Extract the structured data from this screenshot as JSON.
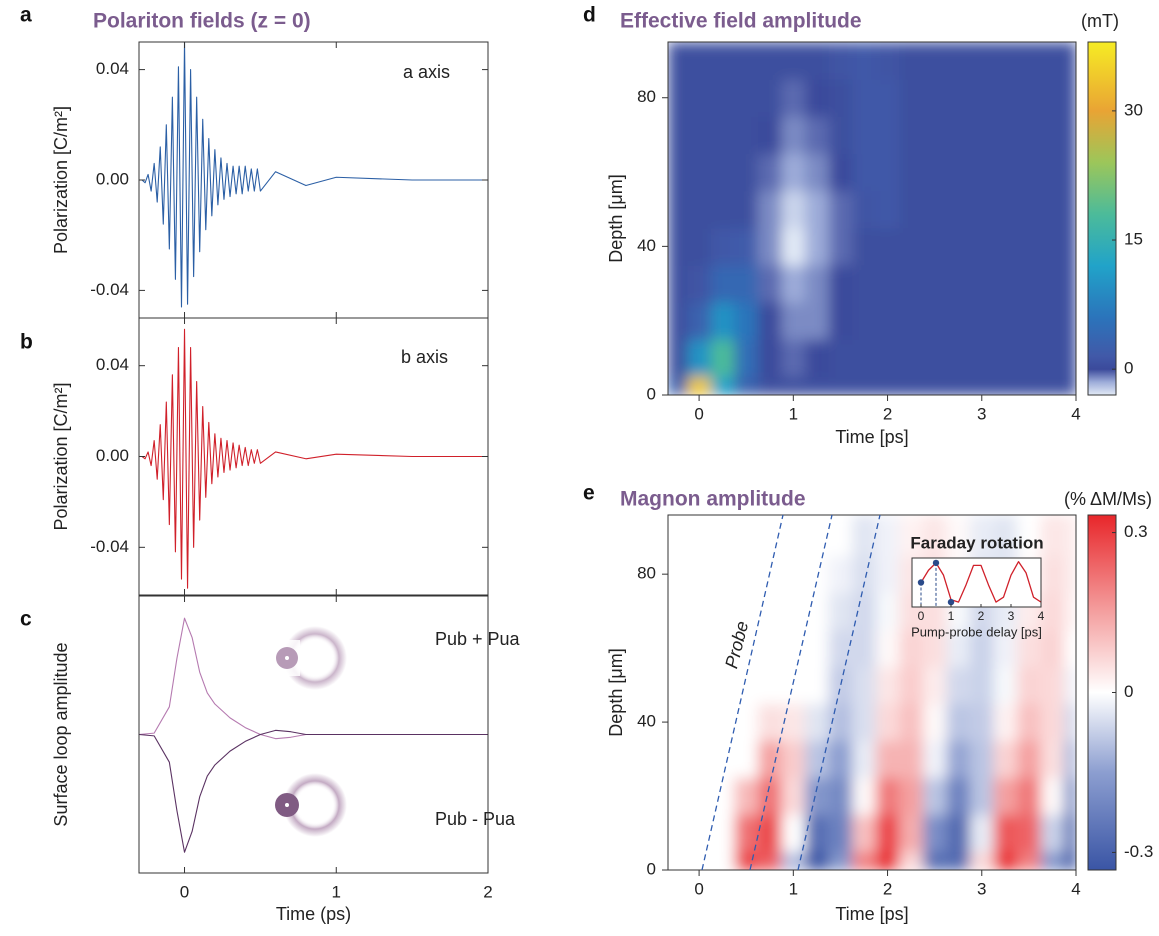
{
  "chart_data": [
    {
      "type": "line",
      "panel": "a",
      "title": "Polariton fields (z = 0)",
      "ylabel": "Polarization [C/m²]",
      "annotation": "a axis",
      "x": [
        -0.3,
        -0.28,
        -0.26,
        -0.24,
        -0.22,
        -0.2,
        -0.18,
        -0.16,
        -0.14,
        -0.12,
        -0.1,
        -0.08,
        -0.06,
        -0.04,
        -0.02,
        0,
        0.02,
        0.04,
        0.06,
        0.08,
        0.1,
        0.12,
        0.14,
        0.16,
        0.18,
        0.2,
        0.22,
        0.24,
        0.26,
        0.28,
        0.3,
        0.32,
        0.34,
        0.36,
        0.38,
        0.4,
        0.42,
        0.44,
        0.46,
        0.48,
        0.5,
        0.6,
        0.8,
        1.0,
        1.5,
        2.0
      ],
      "series": [
        {
          "color": "#2b5fa5",
          "values": [
            0,
            0,
            -0.001,
            0.002,
            -0.004,
            0.006,
            -0.008,
            0.012,
            -0.016,
            0.02,
            -0.025,
            0.03,
            -0.036,
            0.041,
            -0.046,
            0.05,
            -0.045,
            0.04,
            -0.035,
            0.03,
            -0.026,
            0.022,
            -0.018,
            0.015,
            -0.013,
            0.011,
            -0.009,
            0.008,
            -0.007,
            0.006,
            -0.006,
            0.005,
            -0.005,
            0.005,
            -0.005,
            0.005,
            -0.004,
            0.004,
            -0.004,
            0.004,
            -0.004,
            0.003,
            -0.002,
            0.001,
            0,
            0
          ]
        }
      ],
      "xlim": [
        -0.3,
        2
      ],
      "xticks": [
        0,
        1,
        2
      ],
      "xtick_labels": false,
      "ylim": [
        -0.05,
        0.05
      ],
      "yticks": [
        -0.04,
        {
          "value": 0,
          "label": "0.00"
        },
        0.04
      ]
    },
    {
      "type": "line",
      "panel": "b",
      "ylabel": "Polarization [C/m²]",
      "annotation": "b axis",
      "x": [
        -0.3,
        -0.28,
        -0.26,
        -0.24,
        -0.22,
        -0.2,
        -0.18,
        -0.16,
        -0.14,
        -0.12,
        -0.1,
        -0.08,
        -0.06,
        -0.04,
        -0.02,
        0,
        0.02,
        0.04,
        0.06,
        0.08,
        0.1,
        0.12,
        0.14,
        0.16,
        0.18,
        0.2,
        0.22,
        0.24,
        0.26,
        0.28,
        0.3,
        0.32,
        0.34,
        0.36,
        0.38,
        0.4,
        0.42,
        0.44,
        0.46,
        0.48,
        0.5,
        0.6,
        0.8,
        1.0,
        1.5,
        2.0
      ],
      "series": [
        {
          "color": "#d0202a",
          "values": [
            0,
            0,
            -0.001,
            0.002,
            -0.004,
            0.007,
            -0.01,
            0.014,
            -0.019,
            0.024,
            -0.03,
            0.036,
            -0.042,
            0.048,
            -0.054,
            0.056,
            -0.058,
            0.048,
            -0.04,
            0.033,
            -0.028,
            0.022,
            -0.018,
            0.015,
            -0.012,
            0.01,
            -0.009,
            0.008,
            -0.007,
            0.007,
            -0.006,
            0.006,
            -0.005,
            0.005,
            -0.004,
            0.004,
            -0.004,
            0.003,
            -0.003,
            0.003,
            -0.003,
            0.002,
            -0.001,
            0.001,
            0,
            0
          ]
        }
      ],
      "xlim": [
        -0.3,
        2
      ],
      "xticks": [
        0,
        1,
        2
      ],
      "xtick_labels": false,
      "ylim": [
        -0.061,
        0.061
      ],
      "yticks": [
        -0.04,
        {
          "value": 0,
          "label": "0.00"
        },
        0.04
      ]
    },
    {
      "type": "line",
      "panel": "c",
      "ylabel": "Surface loop amplitude",
      "xlabel": "Time (ps)",
      "x": [
        -0.3,
        -0.2,
        -0.1,
        -0.05,
        0,
        0.05,
        0.1,
        0.15,
        0.2,
        0.3,
        0.4,
        0.5,
        0.6,
        0.7,
        0.8,
        1,
        2
      ],
      "series": [
        {
          "name": "Pub + Pua",
          "color": "#b57ab0",
          "values": [
            0,
            0.01,
            0.2,
            0.55,
            0.84,
            0.7,
            0.45,
            0.3,
            0.22,
            0.12,
            0.05,
            0,
            -0.03,
            -0.02,
            0,
            0,
            0
          ]
        },
        {
          "name": "Pub - Pua",
          "color": "#5a3262",
          "values": [
            0,
            -0.01,
            -0.2,
            -0.55,
            -0.85,
            -0.7,
            -0.45,
            -0.3,
            -0.22,
            -0.12,
            -0.05,
            0,
            0.03,
            0.02,
            0,
            0,
            0
          ]
        }
      ],
      "xlim": [
        -0.3,
        2
      ],
      "xticks": [
        0,
        1,
        2
      ],
      "ylim": [
        -1,
        1
      ]
    },
    {
      "type": "heatmap",
      "panel": "d",
      "title": "Effective field amplitude",
      "xlabel": "Time [ps]",
      "ylabel": "Depth [μm]",
      "x": [
        -0.25,
        0,
        0.25,
        0.5,
        0.75,
        1,
        1.25,
        1.5,
        1.75,
        2,
        2.25,
        2.5,
        2.75,
        3,
        3.25,
        3.5,
        3.75,
        4
      ],
      "y": [
        0,
        10,
        20,
        30,
        40,
        50,
        60,
        70,
        80,
        90
      ],
      "z": [
        [
          3,
          34,
          12,
          3,
          0.5,
          0.5,
          0.5,
          0.5,
          0.5,
          0.5,
          0.5,
          0.5,
          0.5,
          0.5,
          0.5,
          0.5,
          0.5,
          0.5
        ],
        [
          0.5,
          10,
          18,
          5,
          0,
          -0.5,
          0,
          0.5,
          0.5,
          0.5,
          0.5,
          0.5,
          0.5,
          0.5,
          0.5,
          0.5,
          0.5,
          0.5
        ],
        [
          0.5,
          3,
          10,
          6,
          0,
          -1,
          -1,
          0,
          0.5,
          0.5,
          0.5,
          0.5,
          0.5,
          0.5,
          0.5,
          0.5,
          0.5,
          0.5
        ],
        [
          0.5,
          1,
          4,
          4,
          -0.5,
          -1.5,
          -1,
          0,
          0.5,
          0.5,
          0.5,
          0.5,
          0.5,
          0.5,
          0.5,
          0.5,
          0.5,
          0.5
        ],
        [
          0.5,
          0.5,
          1.5,
          2,
          -1,
          -3,
          -1.5,
          -0.5,
          0.5,
          0.5,
          0.5,
          0.5,
          0.5,
          0.5,
          0.5,
          0.5,
          0.5,
          0.5
        ],
        [
          0.5,
          0.5,
          0.5,
          0.5,
          -1,
          -2.5,
          -1.5,
          -0.5,
          1,
          1.5,
          0.5,
          0.5,
          0.5,
          0.5,
          0.5,
          0.5,
          0.5,
          0.5
        ],
        [
          0.5,
          0.5,
          0.5,
          0.5,
          -0.5,
          -1.5,
          -1,
          0,
          1.5,
          1.5,
          0.5,
          0.5,
          0.5,
          0.5,
          0.5,
          0.5,
          0.5,
          0.5
        ],
        [
          0.5,
          0.5,
          0.5,
          0.5,
          0,
          -1,
          -0.5,
          0.5,
          1.5,
          1.5,
          0.5,
          0.5,
          0.5,
          0.5,
          0.5,
          0.5,
          0.5,
          0.5
        ],
        [
          0.5,
          0.5,
          0.5,
          0.5,
          0.5,
          -0.5,
          0,
          0.5,
          1.5,
          1.5,
          0.5,
          0.5,
          0.5,
          0.5,
          0.5,
          0.5,
          0.5,
          0.5
        ],
        [
          0.5,
          0.5,
          0.5,
          0.5,
          0.5,
          0.5,
          0.5,
          1,
          1.5,
          1,
          0.5,
          0.5,
          0.5,
          0.5,
          0.5,
          0.5,
          0.5,
          0.5
        ]
      ],
      "xlim": [
        -0.33,
        4
      ],
      "xticks": [
        0,
        1,
        2,
        3,
        4
      ],
      "ylim": [
        0,
        95
      ],
      "yticks": [
        0,
        40,
        80
      ],
      "colorscale": [
        [
          -3,
          "#e2eaf6"
        ],
        [
          -1.5,
          "#9dacd9"
        ],
        [
          0,
          "#3b4a9b"
        ],
        [
          1.5,
          "#4159a8"
        ],
        [
          6,
          "#2b74bb"
        ],
        [
          12,
          "#21a3c9"
        ],
        [
          18,
          "#4cbb9a"
        ],
        [
          24,
          "#9cc65a"
        ],
        [
          30,
          "#e9a434"
        ],
        [
          38,
          "#f6ec24"
        ]
      ],
      "colorbar": {
        "label": "(mT)",
        "lim": [
          -3,
          38
        ],
        "ticks": [
          0,
          15,
          30
        ]
      }
    },
    {
      "type": "heatmap",
      "panel": "e",
      "title": "Magnon amplitude",
      "xlabel": "Time [ps]",
      "ylabel": "Depth [μm]",
      "annotation": "Probe",
      "x": [
        -0.25,
        0,
        0.25,
        0.5,
        0.75,
        1,
        1.25,
        1.5,
        1.75,
        2,
        2.25,
        2.5,
        2.75,
        3,
        3.25,
        3.5,
        3.75,
        4
      ],
      "y": [
        0,
        10,
        20,
        30,
        40,
        50,
        60,
        70,
        80,
        90
      ],
      "z": [
        [
          0,
          0,
          0,
          0.29,
          0.25,
          -0.1,
          -0.33,
          -0.17,
          0.2,
          0.32,
          0.06,
          -0.27,
          -0.28,
          0.06,
          0.32,
          0.2,
          -0.17,
          -0.33
        ],
        [
          0,
          0,
          0,
          0.22,
          0.28,
          0,
          -0.27,
          -0.22,
          0.1,
          0.29,
          0.13,
          -0.19,
          -0.28,
          -0.03,
          0.26,
          0.24,
          -0.07,
          -0.28
        ],
        [
          0,
          0,
          0,
          0.11,
          0.22,
          0.06,
          -0.17,
          -0.2,
          0.01,
          0.21,
          0.15,
          -0.09,
          -0.22,
          -0.09,
          0.15,
          0.21,
          0.01,
          -0.2
        ],
        [
          0,
          0,
          0,
          0,
          0.15,
          0.08,
          -0.09,
          -0.15,
          -0.03,
          0.12,
          0.12,
          -0.02,
          -0.14,
          -0.09,
          0.07,
          0.15,
          0.05,
          -0.11
        ],
        [
          0,
          0,
          0,
          0,
          0.05,
          0.04,
          -0.04,
          -0.1,
          -0.05,
          0.06,
          0.1,
          0.01,
          -0.09,
          -0.08,
          0.02,
          0.1,
          0.06,
          -0.06
        ],
        [
          0,
          0,
          0,
          0,
          0,
          0,
          0,
          -0.08,
          -0.05,
          0.04,
          0.08,
          0.03,
          -0.06,
          -0.07,
          -0.01,
          0.07,
          0.06,
          -0.02
        ],
        [
          0,
          0,
          0,
          0,
          0,
          0,
          0,
          -0.06,
          -0.06,
          0.01,
          0.07,
          0.05,
          -0.03,
          -0.07,
          -0.02,
          0.05,
          0.07,
          0
        ],
        [
          0,
          0,
          0,
          0,
          0,
          0,
          0,
          -0.04,
          -0.06,
          -0.01,
          0.05,
          0.05,
          -0.01,
          -0.06,
          -0.03,
          0.03,
          0.06,
          0.02
        ],
        [
          0,
          0,
          0,
          0,
          0,
          0,
          0,
          -0.02,
          -0.05,
          -0.02,
          0.04,
          0.05,
          0.01,
          -0.04,
          -0.04,
          0.01,
          0.05,
          0.03
        ],
        [
          0,
          0,
          0,
          0,
          0,
          0,
          0,
          0,
          -0.04,
          -0.02,
          0.02,
          0.04,
          0.01,
          -0.03,
          -0.04,
          0,
          0.04,
          0.03
        ]
      ],
      "xlim": [
        -0.33,
        4
      ],
      "xticks": [
        0,
        1,
        2,
        3,
        4
      ],
      "ylim": [
        0,
        96
      ],
      "yticks": [
        0,
        40,
        80
      ],
      "colorscale": [
        [
          -0.333,
          "#3a55a5"
        ],
        [
          -0.15,
          "#8c9ed0"
        ],
        [
          0,
          "#ffffff"
        ],
        [
          0.15,
          "#f4a0a0"
        ],
        [
          0.333,
          "#e8262a"
        ]
      ],
      "colorbar": {
        "label": "(% ΔM/Ms)",
        "lim": [
          -0.333,
          0.333
        ],
        "ticks": [
          -0.3,
          0,
          0.3
        ]
      }
    },
    {
      "type": "line",
      "title": "Faraday rotation",
      "xlabel": "Pump-probe delay [ps]",
      "x": [
        0,
        0.25,
        0.5,
        0.75,
        1,
        1.25,
        1.5,
        1.75,
        2,
        2.25,
        2.5,
        2.75,
        3,
        3.25,
        3.5,
        3.75,
        4
      ],
      "series": [
        {
          "color": "#d0202a",
          "values": [
            0,
            0.5,
            0.8,
            0.3,
            -0.7,
            -0.8,
            -0.1,
            0.7,
            0.7,
            -0.1,
            -0.8,
            -0.6,
            0.3,
            0.85,
            0.4,
            -0.6,
            -0.8
          ]
        }
      ],
      "points": {
        "color": "#2a4a8a",
        "x": [
          0,
          0.5,
          1
        ],
        "values": [
          0,
          0.8,
          -0.8
        ]
      },
      "xlim": [
        -0.3,
        4
      ],
      "xticks": [
        0,
        1,
        2,
        3,
        4
      ],
      "ylim": [
        -1,
        1
      ]
    }
  ]
}
